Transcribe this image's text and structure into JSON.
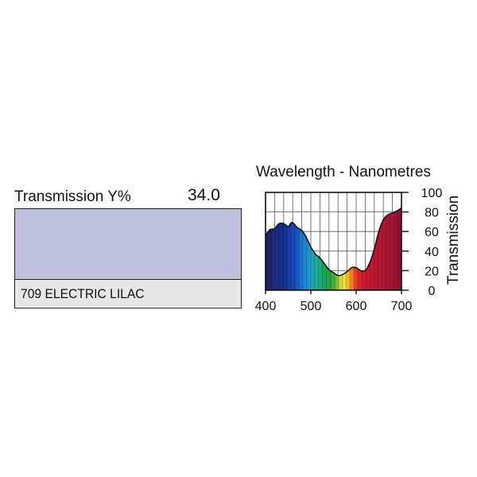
{
  "transmission": {
    "label": "Transmission Y%",
    "value": "34.0"
  },
  "filter": {
    "name": "709 ELECTRIC LILAC",
    "color": "#bcc0dd",
    "name_bar_color": "#e7e7e7"
  },
  "chart_data": {
    "type": "area",
    "title": "Wavelength - Nanometres",
    "xlabel": "Wavelength - Nanometres",
    "ylabel": "Transmission",
    "xlim": [
      400,
      700
    ],
    "ylim": [
      0,
      100
    ],
    "x_ticks": [
      400,
      500,
      600,
      700
    ],
    "y_ticks": [
      0,
      20,
      40,
      60,
      80,
      100
    ],
    "grid": true,
    "fill": "visible-spectrum",
    "series": [
      {
        "x": [
          400,
          405,
          410,
          420,
          430,
          440,
          450,
          455,
          460,
          470,
          480,
          490,
          500,
          510,
          520,
          530,
          540,
          550,
          560,
          570,
          580,
          590,
          600,
          610,
          620,
          630,
          640,
          650,
          660,
          670,
          680,
          690,
          700
        ],
        "values": [
          57,
          59,
          62,
          63,
          68,
          68,
          65,
          68,
          69,
          64,
          61,
          54,
          44,
          37,
          33,
          27,
          21,
          18,
          15,
          16,
          19,
          23,
          23,
          20,
          20,
          28,
          42,
          60,
          72,
          77,
          79,
          81,
          84
        ]
      }
    ]
  }
}
